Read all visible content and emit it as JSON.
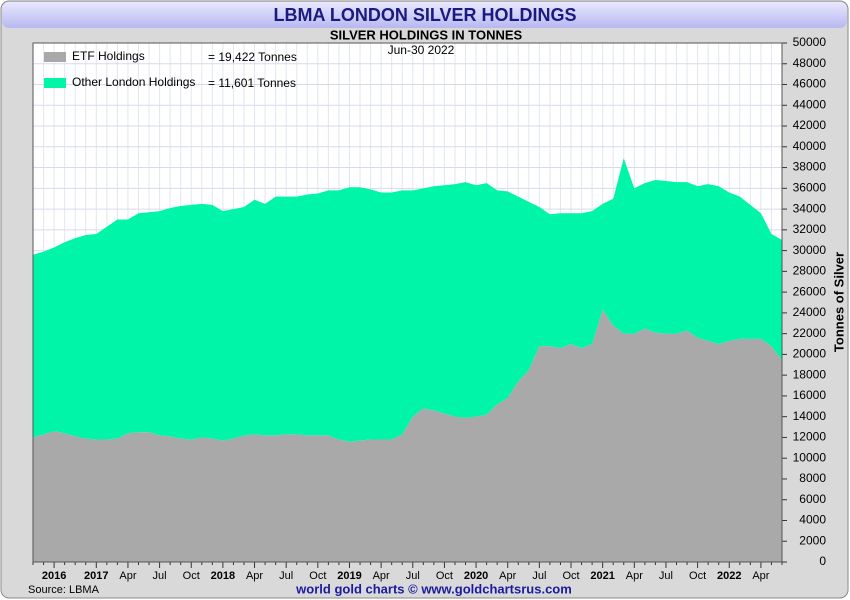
{
  "chart_data": {
    "type": "stacked_area",
    "title": "LBMA LONDON SILVER HOLDINGS",
    "subtitle": "SILVER HOLDINGS IN TONNES",
    "date_label": "Jun-30  2022",
    "y_axis_label": "Tonnes of Silver",
    "source": "Source: LBMA",
    "credit": "world gold charts © www.goldchartsrus.com",
    "categories": [
      null,
      null,
      "2016",
      null,
      null,
      null,
      "2017",
      null,
      null,
      "Apr",
      null,
      null,
      "Jul",
      null,
      null,
      "Oct",
      null,
      null,
      "2018",
      null,
      null,
      "Apr",
      null,
      null,
      "Jul",
      null,
      null,
      "Oct",
      null,
      null,
      "2019",
      null,
      null,
      "Apr",
      null,
      null,
      "Jul",
      null,
      null,
      "Oct",
      null,
      null,
      "2020",
      null,
      null,
      "Apr",
      null,
      null,
      "Jul",
      null,
      null,
      "Oct",
      null,
      null,
      "2021",
      null,
      null,
      "Apr",
      null,
      null,
      "Jul",
      null,
      null,
      "Oct",
      null,
      null,
      "2022",
      null,
      null,
      "Apr",
      null,
      null
    ],
    "series": [
      {
        "name": "ETF Holdings",
        "legend_label": "= 19,422 Tonnes",
        "color": "#a9a9a9",
        "values": [
          12000,
          12300,
          12600,
          12400,
          12100,
          11900,
          11800,
          11800,
          11900,
          12400,
          12500,
          12500,
          12200,
          12100,
          11900,
          11800,
          12000,
          11900,
          11700,
          11900,
          12200,
          12300,
          12200,
          12200,
          12300,
          12300,
          12200,
          12200,
          12200,
          11800,
          11600,
          11700,
          11800,
          11800,
          11800,
          12300,
          14000,
          14800,
          14600,
          14300,
          14000,
          13900,
          14000,
          14200,
          15200,
          15800,
          17400,
          18500,
          20800,
          20800,
          20600,
          21000,
          20600,
          21000,
          24300,
          22800,
          22000,
          22000,
          22500,
          22100,
          22000,
          22000,
          22300,
          21600,
          21300,
          21000,
          21300,
          21500,
          21500,
          21500,
          20800,
          19422
        ]
      },
      {
        "name": "Other London Holdings",
        "legend_label": "= 11,601 Tonnes",
        "color": "#00f5a8",
        "values": [
          17600,
          17600,
          17700,
          18400,
          19100,
          19600,
          19800,
          20500,
          21100,
          20600,
          21100,
          21200,
          21600,
          22000,
          22400,
          22600,
          22500,
          22500,
          22100,
          22100,
          22000,
          22600,
          22300,
          23000,
          22900,
          22900,
          23200,
          23300,
          23600,
          24000,
          24500,
          24400,
          24100,
          23800,
          23800,
          23500,
          21800,
          21200,
          21600,
          22000,
          22400,
          22700,
          22300,
          22300,
          20600,
          19900,
          17800,
          16200,
          13400,
          12700,
          13000,
          12600,
          13000,
          12800,
          10200,
          12200,
          16900,
          14000,
          14000,
          14700,
          14700,
          14600,
          14300,
          14600,
          15100,
          15200,
          14300,
          13700,
          12900,
          12100,
          10800,
          11601
        ]
      }
    ],
    "ylim": [
      0,
      50000
    ],
    "yticks": [
      0,
      2000,
      4000,
      6000,
      8000,
      10000,
      12000,
      14000,
      16000,
      18000,
      20000,
      22000,
      24000,
      26000,
      28000,
      30000,
      32000,
      34000,
      36000,
      38000,
      40000,
      42000,
      44000,
      46000,
      48000,
      50000
    ],
    "grid": true,
    "legend": "top-left"
  }
}
